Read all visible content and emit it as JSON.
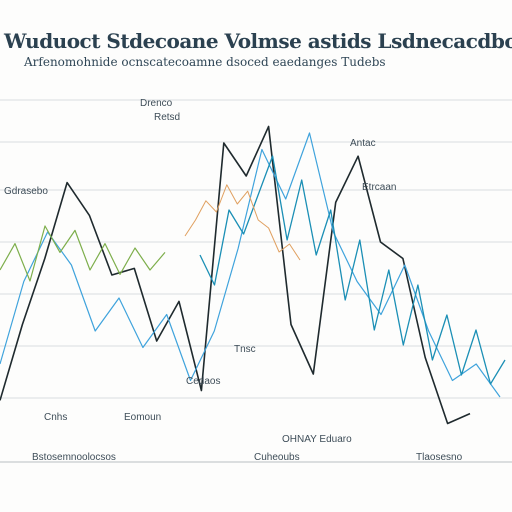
{
  "header": {
    "title": "Wuduoct Stdecoane Volmse astids Lsdnecacdbour",
    "subtitle": "Arfenomohnide ocnscatecoamne dsoced eaedanges Tudebs"
  },
  "annotations": [
    "Drenco",
    "Retsd",
    "Antac",
    "Gdrasebo",
    "Etrcaan",
    "Tnsc",
    "Cedaos",
    "Eomoun",
    "Cnhs",
    "OHNAY Eduaro"
  ],
  "footer": {
    "left_label": "Bstosemnoolocsos",
    "center_label": "Cuheoubs",
    "right_label": "Tlaosesno"
  },
  "colors": {
    "dark_line": "#1f2a2e",
    "blue_line": "#3fa3dc",
    "teal_line": "#1b8fb5",
    "green_line": "#7dae4b",
    "orange_line": "#e0a060",
    "gray_line": "#8a8f92"
  },
  "chart_data": {
    "type": "line",
    "title": "Wuduoct Stdecoane Volmse astids Lsdnecacdbour",
    "grid": true,
    "legend": "none",
    "series": [
      {
        "values": [
          0.12,
          0.35,
          0.55,
          0.78,
          0.68,
          0.5,
          0.52,
          0.3,
          0.42,
          0.15,
          0.9,
          0.8,
          0.95,
          0.35,
          0.2,
          0.72,
          0.86,
          0.6,
          0.55,
          0.25,
          0.05,
          0.08
        ]
      },
      {
        "values": [
          0.2,
          0.45,
          0.6,
          0.5,
          0.3,
          0.4,
          0.25,
          0.35,
          0.15,
          0.3,
          0.55,
          0.85,
          0.7,
          0.9,
          0.6,
          0.45,
          0.35,
          0.5,
          0.3,
          0.15,
          0.2,
          0.1
        ]
      },
      {
        "values": [
          0.55,
          0.45,
          0.7,
          0.62,
          0.75,
          0.88,
          0.6,
          0.8,
          0.55,
          0.7,
          0.4,
          0.6,
          0.3,
          0.5,
          0.25,
          0.45,
          0.2,
          0.35,
          0.15,
          0.3,
          0.12,
          0.2
        ]
      },
      {
        "values": [
          0.5,
          0.62,
          0.45,
          0.7,
          0.58,
          0.68,
          0.5,
          0.62,
          0.48,
          0.6,
          0.5,
          0.58
        ]
      },
      {
        "values": [
          0.4,
          0.5,
          0.62,
          0.55,
          0.72,
          0.6,
          0.68,
          0.5,
          0.45,
          0.3,
          0.35,
          0.25
        ]
      }
    ]
  }
}
